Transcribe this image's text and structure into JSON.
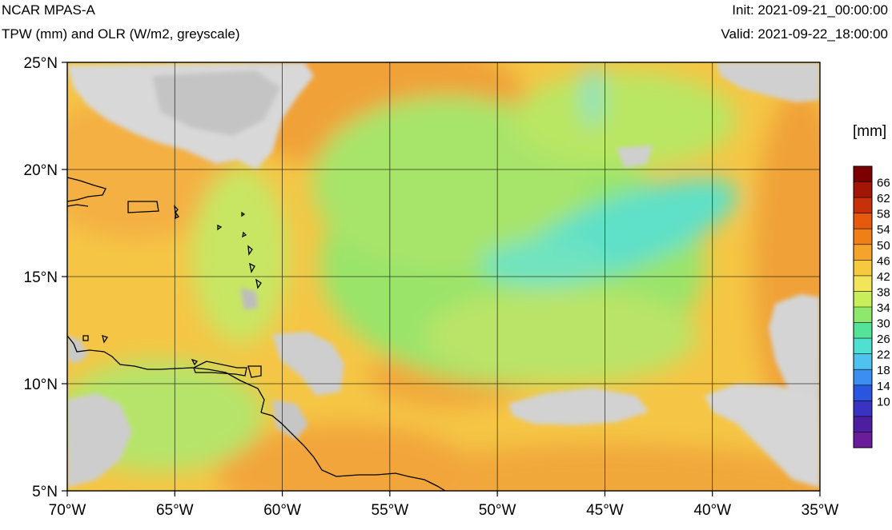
{
  "header": {
    "title": "NCAR MPAS-A",
    "subtitle": "TPW (mm) and OLR (W/m2, greyscale)",
    "init": "Init: 2021-09-21_00:00:00",
    "valid": "Valid: 2021-09-22_18:00:00"
  },
  "map": {
    "lon_range": [
      -70,
      -35
    ],
    "lat_range": [
      5,
      25
    ],
    "lon_ticks": [
      {
        "value": -70,
        "label": "70°W"
      },
      {
        "value": -65,
        "label": "65°W"
      },
      {
        "value": -60,
        "label": "60°W"
      },
      {
        "value": -55,
        "label": "55°W"
      },
      {
        "value": -50,
        "label": "50°W"
      },
      {
        "value": -45,
        "label": "45°W"
      },
      {
        "value": -40,
        "label": "40°W"
      },
      {
        "value": -35,
        "label": "35°W"
      }
    ],
    "lat_ticks": [
      {
        "value": 5,
        "label": "5°N"
      },
      {
        "value": 10,
        "label": "10°N"
      },
      {
        "value": 15,
        "label": "15°N"
      },
      {
        "value": 20,
        "label": "20°N"
      },
      {
        "value": 25,
        "label": "25°N"
      }
    ],
    "grid": true
  },
  "colorbar": {
    "unit_label": "[mm]",
    "labels": [
      "66",
      "62",
      "58",
      "54",
      "50",
      "46",
      "42",
      "38",
      "34",
      "30",
      "26",
      "22",
      "18",
      "14",
      "10"
    ],
    "colors": [
      "#7d0000",
      "#a31505",
      "#c73008",
      "#e55a0d",
      "#f07f16",
      "#f5a32b",
      "#f6c93e",
      "#f3e55a",
      "#c8ef5a",
      "#8fe86b",
      "#55e39a",
      "#4fe0d2",
      "#4fc3ef",
      "#3a8ff0",
      "#2a55e0",
      "#3a32c0",
      "#4d1fa0",
      "#6a1c9a"
    ]
  }
}
